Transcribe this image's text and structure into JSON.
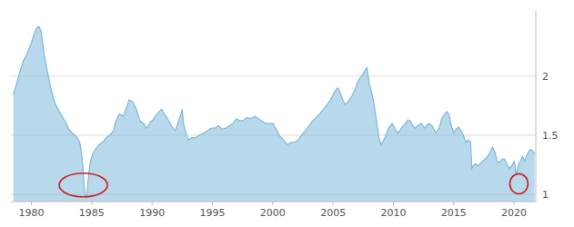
{
  "chart_data": {
    "type": "area",
    "title": "",
    "color": "#7db8da",
    "grid": true,
    "xlim": [
      1978.3,
      2021.8
    ],
    "ylim": [
      0.94,
      2.55
    ],
    "xticks": [
      1980,
      1985,
      1990,
      1995,
      2000,
      2005,
      2010,
      2015,
      2020
    ],
    "yticks": [
      1,
      1.5,
      2
    ],
    "highlights": [
      {
        "x": 1984.3,
        "y": 1.08,
        "width": 4.0,
        "height": 0.2
      },
      {
        "x": 2020.4,
        "y": 1.09,
        "width": 1.5,
        "height": 0.17
      }
    ],
    "x": [
      1978.5,
      1979.0,
      1979.3,
      1979.6,
      1980.0,
      1980.2,
      1980.4,
      1980.6,
      1980.8,
      1981.0,
      1981.2,
      1981.4,
      1981.6,
      1981.8,
      1982.0,
      1982.3,
      1982.6,
      1982.9,
      1983.1,
      1983.4,
      1983.6,
      1983.8,
      1984.0,
      1984.1,
      1984.2,
      1984.25,
      1984.3,
      1984.35,
      1984.4,
      1984.45,
      1984.5,
      1984.55,
      1984.58,
      1984.65,
      1984.75,
      1984.9,
      1985.1,
      1985.3,
      1985.6,
      1985.9,
      1986.2,
      1986.5,
      1986.8,
      1987.0,
      1987.3,
      1987.6,
      1987.9,
      1988.1,
      1988.4,
      1988.7,
      1989.0,
      1989.3,
      1989.5,
      1989.7,
      1989.9,
      1990.0,
      1990.2,
      1990.4,
      1990.6,
      1990.8,
      1991.0,
      1991.3,
      1991.6,
      1991.9,
      1992.0,
      1992.2,
      1992.4,
      1992.5,
      1992.6,
      1992.8,
      1993.0,
      1993.3,
      1993.6,
      1993.9,
      1994.3,
      1994.6,
      1994.9,
      1995.2,
      1995.5,
      1995.8,
      1996.1,
      1996.4,
      1996.7,
      1997.0,
      1997.3,
      1997.6,
      1997.9,
      1998.2,
      1998.5,
      1998.8,
      1999.1,
      1999.4,
      1999.7,
      2000.0,
      2000.3,
      2000.6,
      2000.9,
      2001.2,
      2001.5,
      2001.8,
      2002.1,
      2002.4,
      2002.7,
      2003.0,
      2003.3,
      2003.6,
      2003.9,
      2004.2,
      2004.5,
      2004.8,
      2005.0,
      2005.2,
      2005.4,
      2005.6,
      2005.8,
      2006.0,
      2006.2,
      2006.5,
      2006.8,
      2007.0,
      2007.2,
      2007.4,
      2007.6,
      2007.8,
      2008.0,
      2008.2,
      2008.4,
      2008.6,
      2008.8,
      2009.0,
      2009.3,
      2009.6,
      2009.9,
      2010.0,
      2010.2,
      2010.4,
      2010.6,
      2010.8,
      2011.0,
      2011.2,
      2011.4,
      2011.6,
      2011.8,
      2012.0,
      2012.3,
      2012.6,
      2012.9,
      2013.2,
      2013.5,
      2013.8,
      2014.0,
      2014.2,
      2014.4,
      2014.6,
      2014.8,
      2015.0,
      2015.2,
      2015.4,
      2015.6,
      2015.8,
      2016.0,
      2016.2,
      2016.4,
      2016.5,
      2016.6,
      2016.8,
      2017.0,
      2017.2,
      2017.4,
      2017.6,
      2017.8,
      2018.0,
      2018.2,
      2018.4,
      2018.6,
      2018.8,
      2019.0,
      2019.2,
      2019.4,
      2019.6,
      2019.8,
      2020.0,
      2020.1,
      2020.15,
      2020.2,
      2020.3,
      2020.4,
      2020.5,
      2020.6,
      2020.7,
      2020.8,
      2020.9,
      2021.0,
      2021.2,
      2021.4,
      2021.6,
      2021.7
    ],
    "values": [
      1.84,
      2.02,
      2.12,
      2.18,
      2.28,
      2.35,
      2.4,
      2.42,
      2.38,
      2.22,
      2.1,
      2.0,
      1.9,
      1.82,
      1.76,
      1.7,
      1.65,
      1.6,
      1.55,
      1.52,
      1.5,
      1.48,
      1.44,
      1.38,
      1.3,
      1.25,
      1.18,
      1.1,
      1.04,
      1.0,
      0.98,
      0.97,
      0.99,
      1.06,
      1.18,
      1.28,
      1.35,
      1.38,
      1.42,
      1.44,
      1.48,
      1.5,
      1.54,
      1.62,
      1.68,
      1.66,
      1.74,
      1.8,
      1.78,
      1.72,
      1.62,
      1.6,
      1.56,
      1.58,
      1.62,
      1.62,
      1.65,
      1.68,
      1.7,
      1.72,
      1.68,
      1.64,
      1.58,
      1.54,
      1.56,
      1.62,
      1.68,
      1.72,
      1.6,
      1.52,
      1.46,
      1.48,
      1.48,
      1.5,
      1.52,
      1.54,
      1.56,
      1.56,
      1.58,
      1.55,
      1.56,
      1.58,
      1.6,
      1.64,
      1.62,
      1.63,
      1.65,
      1.64,
      1.66,
      1.64,
      1.62,
      1.6,
      1.6,
      1.6,
      1.55,
      1.49,
      1.46,
      1.42,
      1.44,
      1.44,
      1.46,
      1.5,
      1.54,
      1.58,
      1.62,
      1.65,
      1.68,
      1.72,
      1.76,
      1.8,
      1.84,
      1.88,
      1.9,
      1.86,
      1.8,
      1.76,
      1.78,
      1.82,
      1.88,
      1.94,
      1.98,
      2.0,
      2.04,
      2.07,
      1.94,
      1.86,
      1.76,
      1.62,
      1.48,
      1.42,
      1.48,
      1.56,
      1.6,
      1.58,
      1.54,
      1.52,
      1.55,
      1.58,
      1.6,
      1.63,
      1.62,
      1.58,
      1.56,
      1.58,
      1.6,
      1.56,
      1.6,
      1.58,
      1.52,
      1.56,
      1.64,
      1.67,
      1.7,
      1.68,
      1.58,
      1.52,
      1.55,
      1.57,
      1.54,
      1.5,
      1.44,
      1.46,
      1.44,
      1.22,
      1.24,
      1.26,
      1.24,
      1.26,
      1.28,
      1.3,
      1.32,
      1.36,
      1.4,
      1.36,
      1.28,
      1.27,
      1.3,
      1.3,
      1.26,
      1.22,
      1.24,
      1.28,
      1.24,
      1.16,
      1.18,
      1.22,
      1.26,
      1.28,
      1.3,
      1.32,
      1.3,
      1.28,
      1.32,
      1.36,
      1.38,
      1.36,
      1.34
    ]
  }
}
